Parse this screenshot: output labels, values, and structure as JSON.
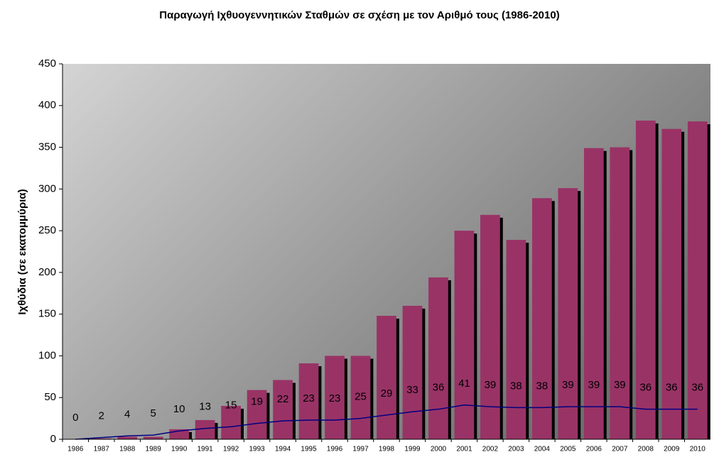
{
  "chart_data": {
    "type": "bar_line",
    "title": "Παραγωγή Ιχθυογεννητικών Σταθμών σε σχέση με τον Αριθμό τους (1986-2010)",
    "y_label": "Ιχθύδια (σε εκατομμύρια)",
    "categories": [
      "1986",
      "1987",
      "1988",
      "1989",
      "1990",
      "1991",
      "1992",
      "1993",
      "1994",
      "1995",
      "1996",
      "1997",
      "1998",
      "1999",
      "2000",
      "2001",
      "2002",
      "2003",
      "2004",
      "2005",
      "2006",
      "2007",
      "2008",
      "2009",
      "2010"
    ],
    "series": [
      {
        "type": "bar",
        "color": "#993366",
        "values": [
          0,
          1,
          3,
          3,
          12,
          23,
          40,
          59,
          71,
          91,
          100,
          100,
          148,
          160,
          194,
          250,
          269,
          239,
          289,
          301,
          349,
          350,
          382,
          372,
          381
        ]
      },
      {
        "type": "line",
        "color": "#000080",
        "values": [
          0,
          2,
          4,
          5,
          10,
          13,
          15,
          19,
          22,
          23,
          23,
          25,
          29,
          33,
          36,
          41,
          39,
          38,
          38,
          39,
          39,
          39,
          36,
          36,
          36
        ]
      }
    ],
    "ylim": [
      0,
      450
    ],
    "yticks": [
      0,
      50,
      100,
      150,
      200,
      250,
      300,
      350,
      400,
      450
    ]
  }
}
